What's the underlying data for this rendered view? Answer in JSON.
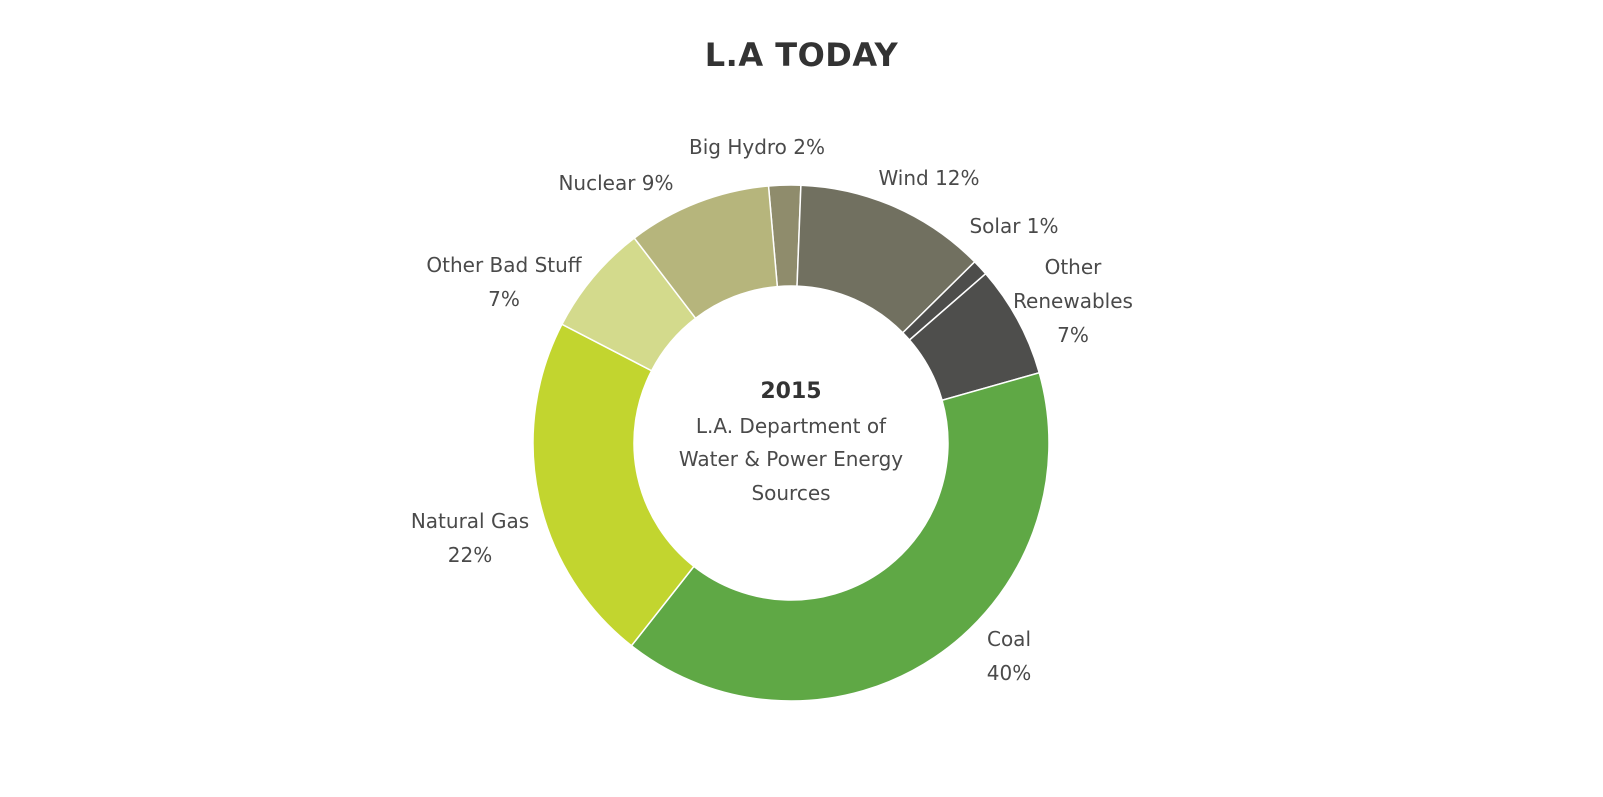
{
  "chart_data": {
    "type": "pie",
    "donut": true,
    "title": "L.A TODAY",
    "center": {
      "year": "2015",
      "lines": [
        "L.A. Department of",
        "Water & Power Energy",
        "Sources"
      ]
    },
    "slices": [
      {
        "name": "Big Hydro",
        "value": 2,
        "color": "#8f8c6c",
        "label_lines": [
          "Big Hydro 2%"
        ]
      },
      {
        "name": "Wind",
        "value": 12,
        "color": "#717060",
        "label_lines": [
          "Wind 12%"
        ]
      },
      {
        "name": "Solar",
        "value": 1,
        "color": "#4d4d4b",
        "label_lines": [
          "Solar 1%"
        ]
      },
      {
        "name": "Other Renewables",
        "value": 7,
        "color": "#4e4e4c",
        "label_lines": [
          "Other",
          "Renewables",
          "7%"
        ]
      },
      {
        "name": "Coal",
        "value": 40,
        "color": "#5fa845",
        "label_lines": [
          "Coal",
          "40%"
        ]
      },
      {
        "name": "Natural Gas",
        "value": 22,
        "color": "#c2d52f",
        "label_lines": [
          "Natural Gas",
          "22%"
        ]
      },
      {
        "name": "Other Bad Stuff",
        "value": 7,
        "color": "#d3da8c",
        "label_lines": [
          "Other Bad Stuff",
          "7%"
        ]
      },
      {
        "name": "Nuclear",
        "value": 9,
        "color": "#b6b57c",
        "label_lines": [
          "Nuclear 9%"
        ]
      }
    ]
  }
}
